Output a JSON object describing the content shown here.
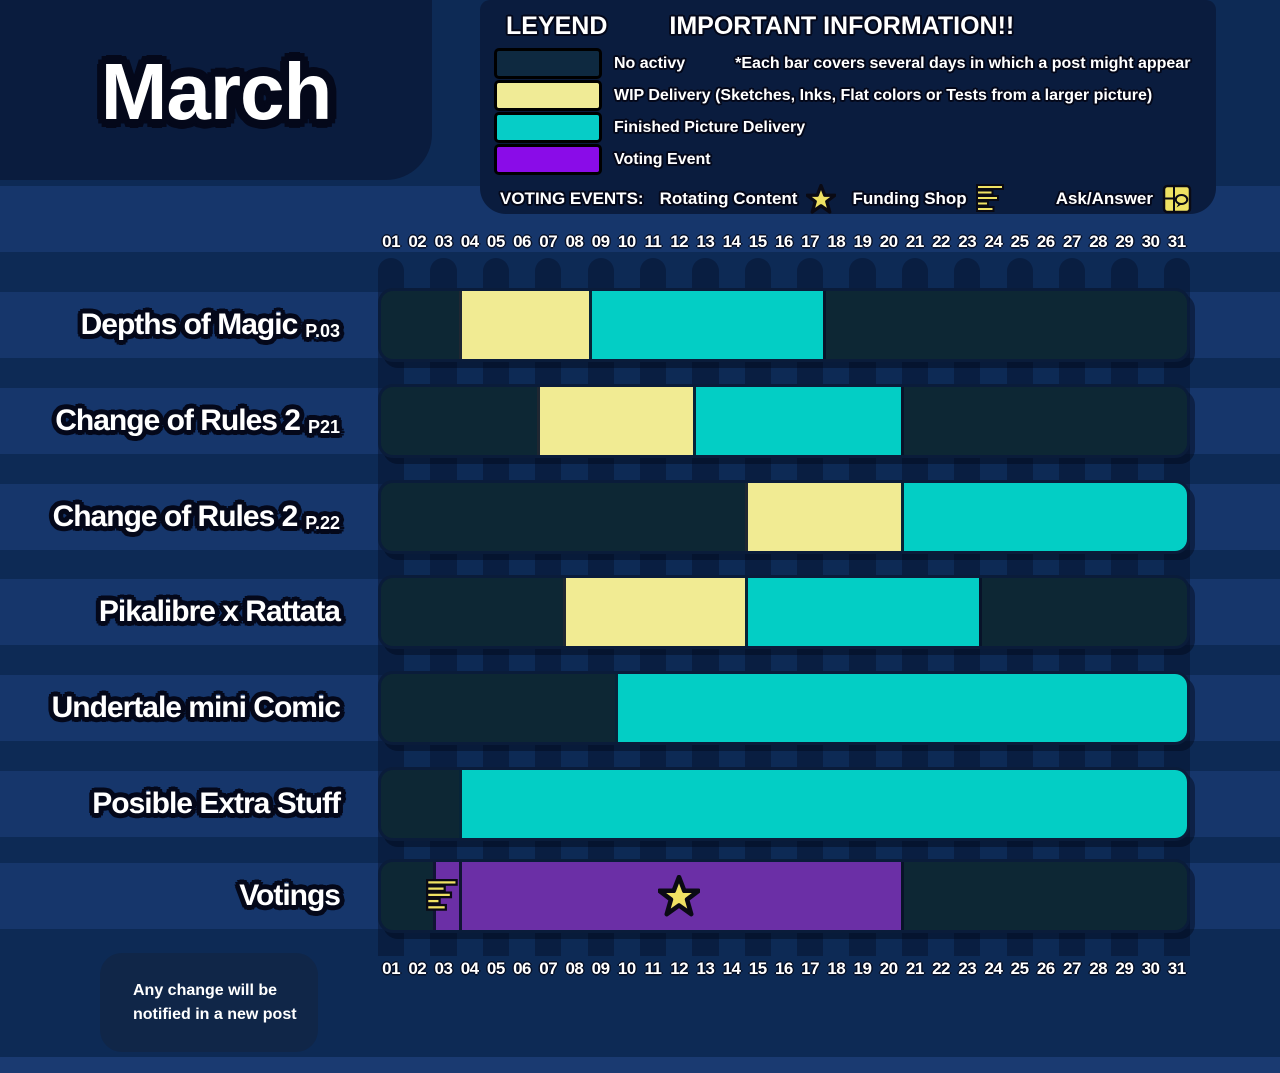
{
  "chart_data": {
    "type": "bar",
    "subtype": "horizontal-gantt-schedule",
    "title": "March",
    "x_unit": "day of month",
    "x_range": [
      1,
      31
    ],
    "grid": "vertical day columns, alternating",
    "day_ticks": [
      "01",
      "02",
      "03",
      "04",
      "05",
      "06",
      "07",
      "08",
      "09",
      "10",
      "11",
      "12",
      "13",
      "14",
      "15",
      "16",
      "17",
      "18",
      "19",
      "20",
      "21",
      "22",
      "23",
      "24",
      "25",
      "26",
      "27",
      "28",
      "29",
      "30",
      "31"
    ],
    "legend": {
      "items": [
        {
          "key": "na",
          "label": "No activy",
          "color": "#0e2940"
        },
        {
          "key": "wip",
          "label": "WIP Delivery (Sketches, Inks, Flat colors or Tests from a larger picture)",
          "color": "#f0eb96"
        },
        {
          "key": "fin",
          "label": "Finished Picture Delivery",
          "color": "#06cdc7"
        },
        {
          "key": "vote",
          "label": "Voting Event",
          "color": "#8a0ce8"
        }
      ],
      "voting_events": [
        {
          "label": "Rotating Content",
          "icon": "star-icon"
        },
        {
          "label": "Funding Shop",
          "icon": "funding-shop-icon"
        },
        {
          "label": "Ask/Answer",
          "icon": "ask-answer-icon"
        }
      ]
    },
    "rows": [
      {
        "label": "Depths of Magic",
        "suffix": "P.03",
        "segments": [
          {
            "type": "na",
            "start": 1,
            "end": 3
          },
          {
            "type": "wip",
            "start": 4,
            "end": 8
          },
          {
            "type": "fin",
            "start": 9,
            "end": 17
          },
          {
            "type": "na",
            "start": 18,
            "end": 31
          }
        ]
      },
      {
        "label": "Change of Rules 2",
        "suffix": "P21",
        "segments": [
          {
            "type": "na",
            "start": 1,
            "end": 6
          },
          {
            "type": "wip",
            "start": 7,
            "end": 12
          },
          {
            "type": "fin",
            "start": 13,
            "end": 20
          },
          {
            "type": "na",
            "start": 21,
            "end": 31
          }
        ]
      },
      {
        "label": "Change of Rules 2",
        "suffix": "P.22",
        "segments": [
          {
            "type": "na",
            "start": 1,
            "end": 14
          },
          {
            "type": "wip",
            "start": 15,
            "end": 20
          },
          {
            "type": "fin",
            "start": 21,
            "end": 31
          }
        ]
      },
      {
        "label": "Pikalibre x Rattata",
        "suffix": "",
        "segments": [
          {
            "type": "na",
            "start": 1,
            "end": 7
          },
          {
            "type": "wip",
            "start": 8,
            "end": 14
          },
          {
            "type": "fin",
            "start": 15,
            "end": 23
          },
          {
            "type": "na",
            "start": 24,
            "end": 31
          }
        ]
      },
      {
        "label": "Undertale mini Comic",
        "suffix": "",
        "segments": [
          {
            "type": "na",
            "start": 1,
            "end": 9
          },
          {
            "type": "fin",
            "start": 10,
            "end": 31
          }
        ]
      },
      {
        "label": "Posible Extra Stuff",
        "suffix": "",
        "segments": [
          {
            "type": "na",
            "start": 1,
            "end": 3
          },
          {
            "type": "fin",
            "start": 4,
            "end": 31
          }
        ]
      },
      {
        "label": "Votings",
        "suffix": "",
        "segments": [
          {
            "type": "na",
            "start": 1,
            "end": 2
          },
          {
            "type": "vote",
            "start": 3,
            "end": 3
          },
          {
            "type": "vote",
            "start": 4,
            "end": 20
          },
          {
            "type": "na",
            "start": 21,
            "end": 31
          }
        ],
        "icons": [
          {
            "icon": "funding-shop-icon",
            "day": 3
          },
          {
            "icon": "star-icon",
            "day": 12
          }
        ]
      }
    ]
  },
  "legend_ui": {
    "heading": "LEYEND",
    "important": "IMPORTANT INFORMATION!!",
    "note": "*Each bar covers several days in which a post might appear",
    "voting_events_label": "VOTING EVENTS:"
  },
  "footer": {
    "note_line1": "Any change will be",
    "note_line2": "notified in a new post"
  },
  "colors": {
    "bg": "#0d2a55",
    "stripe": "#16366b",
    "panel": "#0a1c3e",
    "na_bar": "#0d2734",
    "wip_bar": "#f1eb93",
    "fin_bar": "#03cec5",
    "vote_bar": "#6b2fa6",
    "vote_legend": "#8a0ce8",
    "icon_yellow": "#efe263"
  }
}
